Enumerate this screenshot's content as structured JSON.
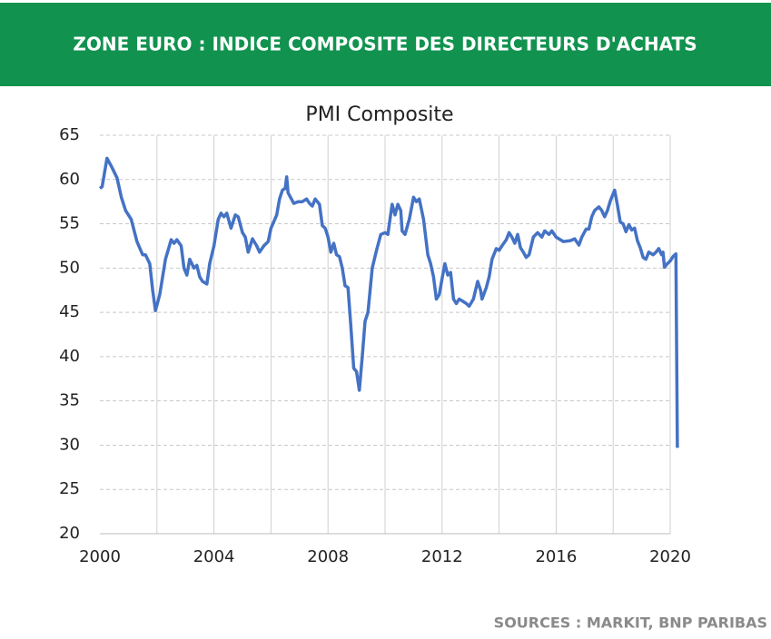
{
  "header": {
    "title": "ZONE EURO : INDICE COMPOSITE DES DIRECTEURS D'ACHATS"
  },
  "chart_data": {
    "type": "line",
    "title": "PMI Composite",
    "x": [
      2000.0,
      2000.08,
      2000.25,
      2000.4,
      2000.6,
      2000.75,
      2000.9,
      2001.1,
      2001.3,
      2001.5,
      2001.6,
      2001.75,
      2001.85,
      2001.95,
      2002.1,
      2002.3,
      2002.5,
      2002.6,
      2002.7,
      2002.85,
      2002.95,
      2003.05,
      2003.15,
      2003.3,
      2003.4,
      2003.5,
      2003.6,
      2003.75,
      2003.85,
      2004.0,
      2004.15,
      2004.25,
      2004.35,
      2004.45,
      2004.6,
      2004.75,
      2004.85,
      2005.0,
      2005.1,
      2005.2,
      2005.35,
      2005.5,
      2005.6,
      2005.75,
      2005.9,
      2006.0,
      2006.2,
      2006.3,
      2006.4,
      2006.5,
      2006.55,
      2006.6,
      2006.8,
      2006.95,
      2007.1,
      2007.25,
      2007.35,
      2007.45,
      2007.55,
      2007.7,
      2007.8,
      2007.9,
      2008.0,
      2008.1,
      2008.2,
      2008.3,
      2008.4,
      2008.5,
      2008.6,
      2008.7,
      2008.8,
      2008.9,
      2009.0,
      2009.1,
      2009.2,
      2009.3,
      2009.4,
      2009.55,
      2009.7,
      2009.85,
      2010.0,
      2010.1,
      2010.25,
      2010.35,
      2010.45,
      2010.55,
      2010.6,
      2010.7,
      2010.85,
      2011.0,
      2011.1,
      2011.2,
      2011.35,
      2011.5,
      2011.6,
      2011.7,
      2011.8,
      2011.9,
      2012.0,
      2012.1,
      2012.2,
      2012.3,
      2012.4,
      2012.5,
      2012.6,
      2012.7,
      2012.85,
      2012.95,
      2013.1,
      2013.25,
      2013.35,
      2013.4,
      2013.55,
      2013.65,
      2013.75,
      2013.9,
      2014.0,
      2014.1,
      2014.25,
      2014.35,
      2014.45,
      2014.55,
      2014.65,
      2014.75,
      2014.85,
      2014.95,
      2015.05,
      2015.2,
      2015.35,
      2015.5,
      2015.6,
      2015.75,
      2015.85,
      2016.0,
      2016.1,
      2016.25,
      2016.5,
      2016.65,
      2016.8,
      2016.9,
      2017.05,
      2017.15,
      2017.25,
      2017.35,
      2017.5,
      2017.6,
      2017.7,
      2017.8,
      2017.9,
      2018.05,
      2018.15,
      2018.25,
      2018.35,
      2018.45,
      2018.55,
      2018.65,
      2018.75,
      2018.85,
      2018.95,
      2019.05,
      2019.15,
      2019.25,
      2019.4,
      2019.5,
      2019.6,
      2019.7,
      2019.75,
      2019.8,
      2019.9,
      2020.0,
      2020.1,
      2020.2,
      2020.25
    ],
    "series": [
      {
        "name": "PMI Composite",
        "color": "#4472c4",
        "values": [
          59,
          59.2,
          62.4,
          61.5,
          60.2,
          58,
          56.5,
          55.5,
          53,
          51.5,
          51.5,
          50.5,
          47.5,
          45.2,
          47,
          51,
          53.2,
          52.8,
          53.2,
          52.5,
          50,
          49.2,
          51,
          50,
          50.3,
          49,
          48.5,
          48.2,
          50.5,
          52.5,
          55.5,
          56.2,
          55.8,
          56.2,
          54.5,
          56,
          55.8,
          54,
          53.5,
          51.8,
          53.3,
          52.5,
          51.8,
          52.5,
          53,
          54.5,
          56,
          57.8,
          58.8,
          59,
          60.3,
          58.5,
          57.3,
          57.5,
          57.5,
          57.8,
          57.3,
          57,
          57.8,
          57.2,
          54.8,
          54.5,
          53.5,
          51.8,
          52.8,
          51.5,
          51.3,
          50,
          48,
          47.8,
          43.5,
          38.7,
          38.3,
          36.2,
          40,
          44,
          45,
          50,
          52,
          53.8,
          54,
          53.8,
          57.2,
          56,
          57.2,
          56.5,
          54.2,
          53.8,
          55.5,
          58,
          57.5,
          57.8,
          55.5,
          51.5,
          50.5,
          49,
          46.5,
          47,
          48.8,
          50.5,
          49.2,
          49.5,
          46.5,
          46,
          46.5,
          46.3,
          46,
          45.7,
          46.5,
          48.5,
          47.5,
          46.5,
          47.8,
          49,
          51,
          52.2,
          52,
          52.5,
          53.2,
          54,
          53.5,
          52.8,
          53.8,
          52.3,
          51.8,
          51.2,
          51.5,
          53.5,
          54,
          53.5,
          54.2,
          53.8,
          54.2,
          53.5,
          53.3,
          53,
          53.1,
          53.3,
          52.6,
          53.5,
          54.4,
          54.4,
          55.8,
          56.5,
          56.9,
          56.5,
          55.8,
          56.5,
          57.6,
          58.8,
          57.1,
          55.2,
          55,
          54.1,
          54.9,
          54.3,
          54.5,
          53.1,
          52.3,
          51.2,
          51,
          51.8,
          51.5,
          51.8,
          52.2,
          51.5,
          51.8,
          50.1,
          50.5,
          50.8,
          51.3,
          51.6,
          29.7
        ]
      }
    ],
    "xlim": [
      2000,
      2020.25
    ],
    "xticks": [
      2000,
      2004,
      2008,
      2012,
      2016,
      2020
    ],
    "xminor_ticks": [
      2002,
      2006,
      2010,
      2014,
      2018
    ],
    "ylim": [
      20,
      65
    ],
    "yticks": [
      20,
      25,
      30,
      35,
      40,
      45,
      50,
      55,
      60,
      65
    ],
    "grid": true
  },
  "footer": {
    "source": "SOURCES : MARKIT, BNP PARIBAS"
  }
}
